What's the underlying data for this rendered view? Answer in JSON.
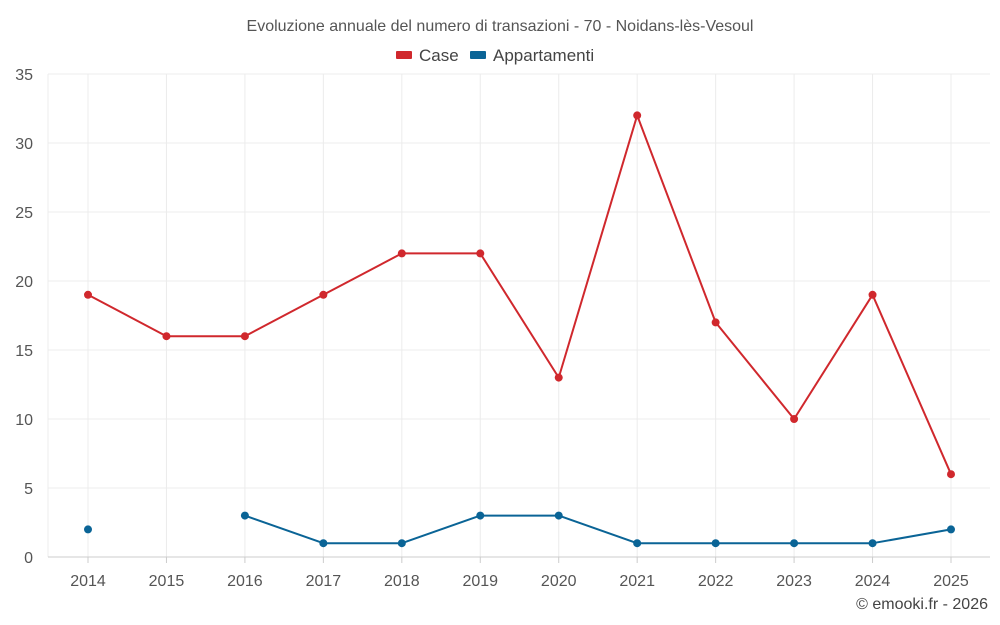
{
  "chart_data": {
    "type": "line",
    "title": "Evoluzione annuale del numero di transazioni - 70 - Noidans-lès-Vesoul",
    "categories": [
      "2014",
      "2015",
      "2016",
      "2017",
      "2018",
      "2019",
      "2020",
      "2021",
      "2022",
      "2023",
      "2024",
      "2025"
    ],
    "series": [
      {
        "name": "Case",
        "color": "#d0282d",
        "values": [
          19,
          16,
          16,
          19,
          22,
          22,
          13,
          32,
          17,
          10,
          19,
          6
        ]
      },
      {
        "name": "Appartamenti",
        "color": "#0a6496",
        "values": [
          2,
          null,
          3,
          1,
          1,
          3,
          3,
          1,
          1,
          1,
          1,
          2
        ]
      }
    ],
    "ylim": [
      0,
      35
    ],
    "yticks": [
      0,
      5,
      10,
      15,
      20,
      25,
      30,
      35
    ],
    "grid": true,
    "legend_position": "top-center",
    "credit": "© emooki.fr - 2026"
  }
}
